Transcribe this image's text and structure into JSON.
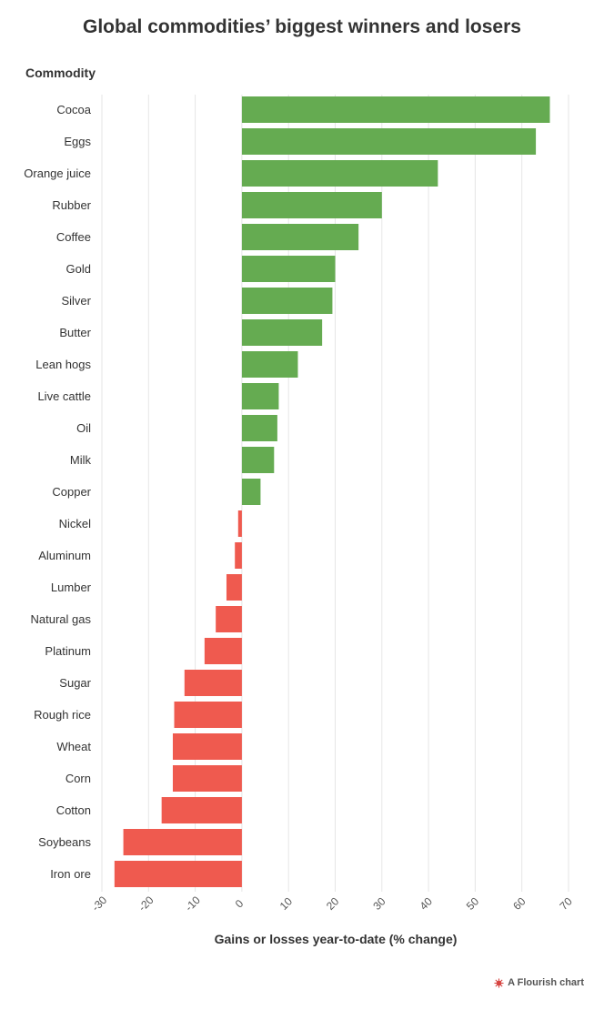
{
  "chart_data": {
    "type": "bar",
    "orientation": "horizontal",
    "title": "Global commodities’ biggest winners and losers",
    "ylabel": "Commodity",
    "xlabel": "Gains or losses year-to-date (% change)",
    "xlim": [
      -30,
      70
    ],
    "xticks": [
      -30,
      -20,
      -10,
      0,
      10,
      20,
      30,
      40,
      50,
      60,
      70
    ],
    "grid": true,
    "categories": [
      "Cocoa",
      "Eggs",
      "Orange juice",
      "Rubber",
      "Coffee",
      "Gold",
      "Silver",
      "Butter",
      "Lean hogs",
      "Live cattle",
      "Oil",
      "Milk",
      "Copper",
      "Nickel",
      "Aluminum",
      "Lumber",
      "Natural gas",
      "Platinum",
      "Sugar",
      "Rough rice",
      "Wheat",
      "Corn",
      "Cotton",
      "Soybeans",
      "Iron ore"
    ],
    "values": [
      66,
      63,
      42,
      30,
      25,
      20,
      19.4,
      17.2,
      12,
      7.9,
      7.6,
      6.9,
      4,
      -0.8,
      -1.5,
      -3.3,
      -5.6,
      -8,
      -12.3,
      -14.5,
      -14.8,
      -14.8,
      -17.2,
      -25.4,
      -27.3
    ],
    "colors": {
      "positive": "#65ab51",
      "negative": "#ef5a4f"
    }
  },
  "credit": {
    "text": "A Flourish chart",
    "icon": "flourish-logo-icon"
  }
}
